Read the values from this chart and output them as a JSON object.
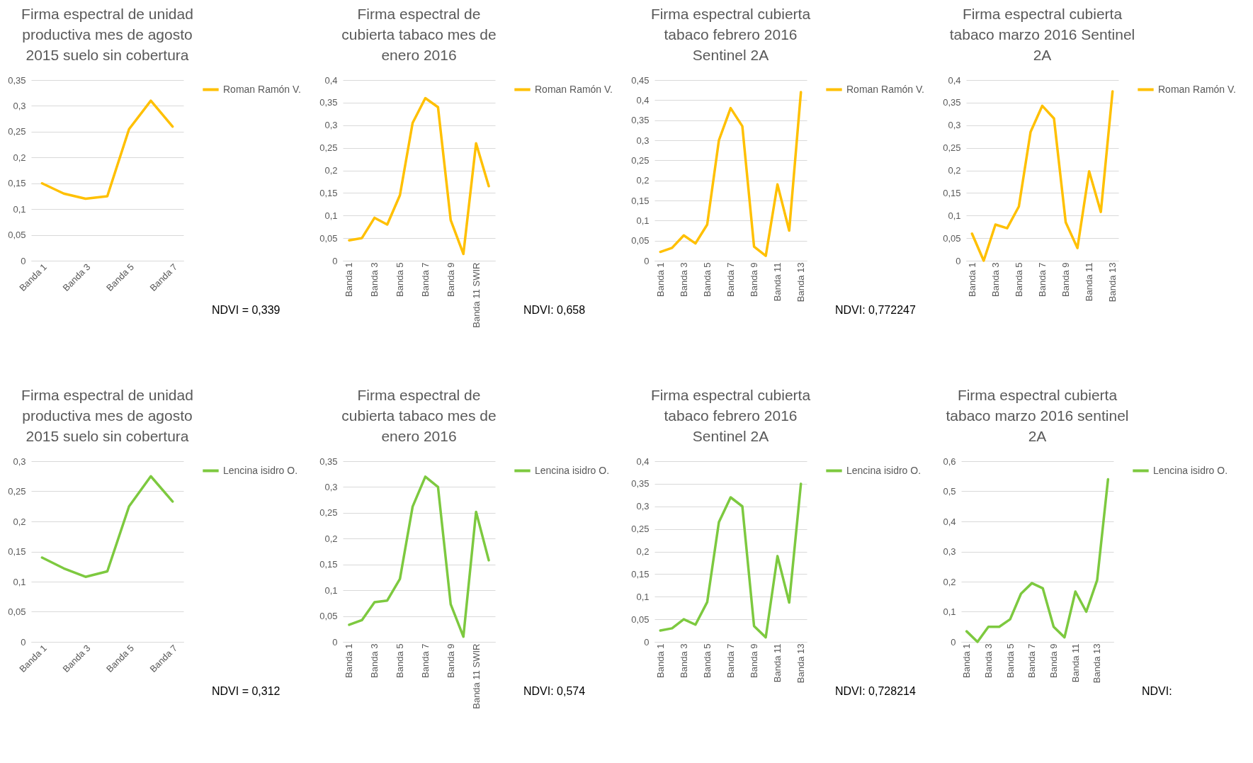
{
  "chart_data": [
    {
      "type": "line",
      "title": "Firma espectral de unidad productiva mes de agosto 2015 suelo sin cobertura",
      "categories": [
        "Banda 1",
        null,
        "Banda 3",
        null,
        "Banda 5",
        null,
        "Banda 7"
      ],
      "series": [
        {
          "name": "Roman Ramón V.",
          "color": "#ffc000",
          "values": [
            0.15,
            0.13,
            0.12,
            0.125,
            0.255,
            0.31,
            0.26
          ]
        }
      ],
      "ylim": [
        0,
        0.35
      ],
      "yticks": [
        {
          "value": 0,
          "label": "0"
        },
        {
          "value": 0.05,
          "label": "0,05"
        },
        {
          "value": 0.1,
          "label": "0,1"
        },
        {
          "value": 0.15,
          "label": "0,15"
        },
        {
          "value": 0.2,
          "label": "0,2"
        },
        {
          "value": 0.25,
          "label": "0,25"
        },
        {
          "value": 0.3,
          "label": "0,3"
        },
        {
          "value": 0.35,
          "label": "0,35"
        }
      ],
      "grid": "y",
      "legend": "right",
      "annotations": [
        "NDVI = 0,339"
      ]
    },
    {
      "type": "line",
      "title": "Firma espectral de cubierta tabaco mes de enero 2016",
      "categories": [
        "Banda 1",
        null,
        "Banda 3",
        null,
        "Banda 5",
        null,
        "Banda 7",
        null,
        "Banda 9",
        null,
        "Banda 11 SWIR",
        null
      ],
      "series": [
        {
          "name": "Roman Ramón V.",
          "color": "#ffc000",
          "values": [
            0.045,
            0.05,
            0.095,
            0.08,
            0.145,
            0.305,
            0.36,
            0.34,
            0.09,
            0.015,
            0.26,
            0.165
          ]
        }
      ],
      "ylim": [
        0,
        0.4
      ],
      "yticks": [
        {
          "value": 0,
          "label": "0"
        },
        {
          "value": 0.05,
          "label": "0,05"
        },
        {
          "value": 0.1,
          "label": "0,1"
        },
        {
          "value": 0.15,
          "label": "0,15"
        },
        {
          "value": 0.2,
          "label": "0,2"
        },
        {
          "value": 0.25,
          "label": "0,25"
        },
        {
          "value": 0.3,
          "label": "0,3"
        },
        {
          "value": 0.35,
          "label": "0,35"
        },
        {
          "value": 0.4,
          "label": "0,4"
        }
      ],
      "grid": "y",
      "legend": "right",
      "annotations": [
        "NDVI: 0,658"
      ]
    },
    {
      "type": "line",
      "title": "Firma espectral cubierta tabaco febrero 2016 Sentinel 2A",
      "categories": [
        "Banda 1",
        null,
        "Banda 3",
        null,
        "Banda 5",
        null,
        "Banda 7",
        null,
        "Banda 9",
        null,
        "Banda 11",
        null,
        "Banda 13"
      ],
      "series": [
        {
          "name": "Roman Ramón V.",
          "color": "#ffc000",
          "values": [
            0.022,
            0.032,
            0.063,
            0.043,
            0.09,
            0.3,
            0.38,
            0.335,
            0.035,
            0.012,
            0.19,
            0.075,
            0.42
          ]
        }
      ],
      "ylim": [
        0,
        0.45
      ],
      "yticks": [
        {
          "value": 0,
          "label": "0"
        },
        {
          "value": 0.05,
          "label": "0,05"
        },
        {
          "value": 0.1,
          "label": "0,1"
        },
        {
          "value": 0.15,
          "label": "0,15"
        },
        {
          "value": 0.2,
          "label": "0,2"
        },
        {
          "value": 0.25,
          "label": "0,25"
        },
        {
          "value": 0.3,
          "label": "0,3"
        },
        {
          "value": 0.35,
          "label": "0,35"
        },
        {
          "value": 0.4,
          "label": "0,4"
        },
        {
          "value": 0.45,
          "label": "0,45"
        }
      ],
      "grid": "y",
      "legend": "right",
      "annotations": [
        "NDVI: 0,772247"
      ]
    },
    {
      "type": "line",
      "title": "Firma espectral cubierta tabaco marzo 2016 Sentinel 2A",
      "categories": [
        "Banda 1",
        null,
        "Banda 3",
        null,
        "Banda 5",
        null,
        "Banda 7",
        null,
        "Banda 9",
        null,
        "Banda 11",
        null,
        "Banda 13"
      ],
      "series": [
        {
          "name": "Roman Ramón V.",
          "color": "#ffc000",
          "values": [
            0.06,
            0.0,
            0.08,
            0.072,
            0.12,
            0.285,
            0.343,
            0.315,
            0.085,
            0.028,
            0.198,
            0.108,
            0.375
          ]
        }
      ],
      "ylim": [
        0,
        0.4
      ],
      "yticks": [
        {
          "value": 0,
          "label": "0"
        },
        {
          "value": 0.05,
          "label": "0,05"
        },
        {
          "value": 0.1,
          "label": "0,1"
        },
        {
          "value": 0.15,
          "label": "0,15"
        },
        {
          "value": 0.2,
          "label": "0,2"
        },
        {
          "value": 0.25,
          "label": "0,25"
        },
        {
          "value": 0.3,
          "label": "0,3"
        },
        {
          "value": 0.35,
          "label": "0,35"
        },
        {
          "value": 0.4,
          "label": "0,4"
        }
      ],
      "grid": "y",
      "legend": "right"
    },
    {
      "type": "line",
      "title": "Firma espectral de unidad productiva mes de agosto 2015 suelo sin cobertura",
      "categories": [
        "Banda 1",
        null,
        "Banda 3",
        null,
        "Banda 5",
        null,
        "Banda 7"
      ],
      "series": [
        {
          "name": "Lencina isidro O.",
          "color": "#7dc93f",
          "values": [
            0.14,
            0.122,
            0.108,
            0.117,
            0.225,
            0.275,
            0.233
          ]
        }
      ],
      "ylim": [
        0,
        0.3
      ],
      "yticks": [
        {
          "value": 0,
          "label": "0"
        },
        {
          "value": 0.05,
          "label": "0,05"
        },
        {
          "value": 0.1,
          "label": "0,1"
        },
        {
          "value": 0.15,
          "label": "0,15"
        },
        {
          "value": 0.2,
          "label": "0,2"
        },
        {
          "value": 0.25,
          "label": "0,25"
        },
        {
          "value": 0.3,
          "label": "0,3"
        }
      ],
      "grid": "y",
      "legend": "right",
      "annotations": [
        "NDVI = 0,312"
      ]
    },
    {
      "type": "line",
      "title": "Firma espectral de cubierta tabaco mes de enero 2016",
      "categories": [
        "Banda 1",
        null,
        "Banda 3",
        null,
        "Banda 5",
        null,
        "Banda 7",
        null,
        "Banda 9",
        null,
        "Banda 11 SWIR",
        null
      ],
      "series": [
        {
          "name": "Lencina isidro O.",
          "color": "#7dc93f",
          "values": [
            0.033,
            0.042,
            0.077,
            0.08,
            0.122,
            0.262,
            0.32,
            0.3,
            0.073,
            0.01,
            0.252,
            0.158
          ]
        }
      ],
      "ylim": [
        0,
        0.35
      ],
      "yticks": [
        {
          "value": 0,
          "label": "0"
        },
        {
          "value": 0.05,
          "label": "0,05"
        },
        {
          "value": 0.1,
          "label": "0,1"
        },
        {
          "value": 0.15,
          "label": "0,15"
        },
        {
          "value": 0.2,
          "label": "0,2"
        },
        {
          "value": 0.25,
          "label": "0,25"
        },
        {
          "value": 0.3,
          "label": "0,3"
        },
        {
          "value": 0.35,
          "label": "0,35"
        }
      ],
      "grid": "y",
      "legend": "right",
      "annotations": [
        "NDVI: 0,574"
      ]
    },
    {
      "type": "line",
      "title": "Firma espectral cubierta tabaco febrero 2016 Sentinel 2A",
      "categories": [
        "Banda 1",
        null,
        "Banda 3",
        null,
        "Banda 5",
        null,
        "Banda 7",
        null,
        "Banda 9",
        null,
        "Banda 11",
        null,
        "Banda 13"
      ],
      "series": [
        {
          "name": "Lencina isidro O.",
          "color": "#7dc93f",
          "values": [
            0.025,
            0.03,
            0.05,
            0.038,
            0.088,
            0.265,
            0.32,
            0.3,
            0.035,
            0.01,
            0.19,
            0.087,
            0.35
          ]
        }
      ],
      "ylim": [
        0,
        0.4
      ],
      "yticks": [
        {
          "value": 0,
          "label": "0"
        },
        {
          "value": 0.05,
          "label": "0,05"
        },
        {
          "value": 0.1,
          "label": "0,1"
        },
        {
          "value": 0.15,
          "label": "0,15"
        },
        {
          "value": 0.2,
          "label": "0,2"
        },
        {
          "value": 0.25,
          "label": "0,25"
        },
        {
          "value": 0.3,
          "label": "0,3"
        },
        {
          "value": 0.35,
          "label": "0,35"
        },
        {
          "value": 0.4,
          "label": "0,4"
        }
      ],
      "grid": "y",
      "legend": "right",
      "annotations": [
        "NDVI: 0,728214"
      ]
    },
    {
      "type": "line",
      "title": "Firma espectral cubierta tabaco marzo 2016 sentinel 2A",
      "categories": [
        "Banda 1",
        null,
        "Banda 3",
        null,
        "Banda 5",
        null,
        "Banda 7",
        null,
        "Banda 9",
        null,
        "Banda 11",
        null,
        "Banda 13",
        null
      ],
      "series": [
        {
          "name": "Lencina isidro O.",
          "color": "#7dc93f",
          "values": [
            0.035,
            0.0,
            0.05,
            0.05,
            0.075,
            0.16,
            0.195,
            0.178,
            0.05,
            0.015,
            0.167,
            0.1,
            0.205,
            0.54
          ]
        }
      ],
      "ylim": [
        0,
        0.6
      ],
      "yticks": [
        {
          "value": 0,
          "label": "0"
        },
        {
          "value": 0.1,
          "label": "0,1"
        },
        {
          "value": 0.2,
          "label": "0,2"
        },
        {
          "value": 0.3,
          "label": "0,3"
        },
        {
          "value": 0.4,
          "label": "0,4"
        },
        {
          "value": 0.5,
          "label": "0,5"
        },
        {
          "value": 0.6,
          "label": "0,6"
        }
      ],
      "grid": "y",
      "legend": "right",
      "annotations": [
        "NDVI:"
      ]
    }
  ]
}
